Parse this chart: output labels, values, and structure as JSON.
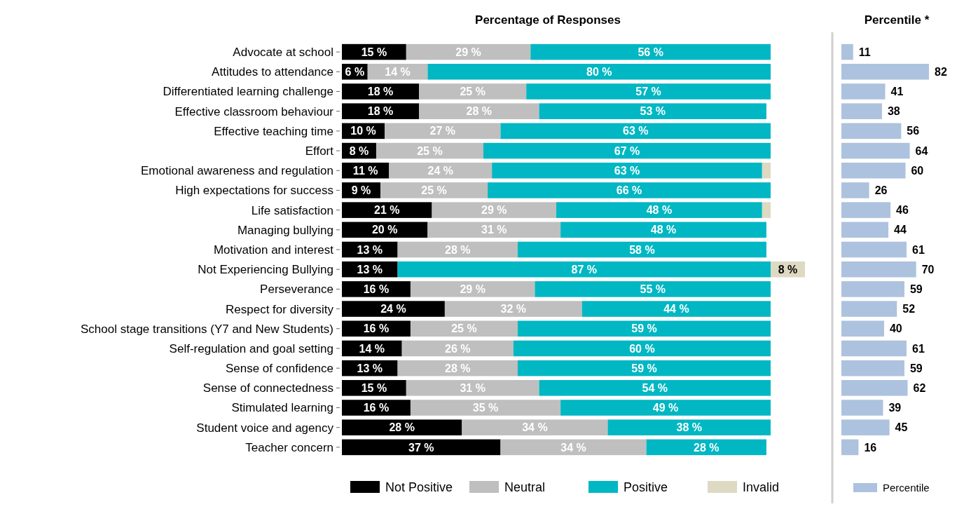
{
  "chart_data": [
    {
      "type": "bar",
      "orientation": "horizontal",
      "stacked": true,
      "title": "Percentage of Responses",
      "legend": "bottom",
      "categories": [
        "Advocate at school",
        "Attitudes to attendance",
        "Differentiated learning challenge",
        "Effective classroom behaviour",
        "Effective teaching time",
        "Effort",
        "Emotional awareness and regulation",
        "High expectations for success",
        "Life satisfaction",
        "Managing bullying",
        "Motivation and interest",
        "Not Experiencing Bullying",
        "Perseverance",
        "Respect for diversity",
        "School stage transitions (Y7 and New Students)",
        "Self-regulation and goal setting",
        "Sense of confidence",
        "Sense of connectedness",
        "Stimulated learning",
        "Student voice and agency",
        "Teacher concern"
      ],
      "series": [
        {
          "name": "Not Positive",
          "color": "#000000",
          "values": [
            15,
            6,
            18,
            18,
            10,
            8,
            11,
            9,
            21,
            20,
            13,
            13,
            16,
            24,
            16,
            14,
            13,
            15,
            16,
            28,
            37
          ],
          "value_labels": [
            "15 %",
            "6 %",
            "18 %",
            "18 %",
            "10 %",
            "8 %",
            "11 %",
            "9 %",
            "21 %",
            "20 %",
            "13 %",
            "13 %",
            "16 %",
            "24 %",
            "16 %",
            "14 %",
            "13 %",
            "15 %",
            "16 %",
            "28 %",
            "37 %"
          ]
        },
        {
          "name": "Neutral",
          "color": "#bfbfbf",
          "values": [
            29,
            14,
            25,
            28,
            27,
            25,
            24,
            25,
            29,
            31,
            28,
            null,
            29,
            32,
            25,
            26,
            28,
            31,
            35,
            34,
            34
          ],
          "value_labels": [
            "29 %",
            "14 %",
            "25 %",
            "28 %",
            "27 %",
            "25 %",
            "24 %",
            "25 %",
            "29 %",
            "31 %",
            "28 %",
            null,
            "29 %",
            "32 %",
            "25 %",
            "26 %",
            "28 %",
            "31 %",
            "35 %",
            "34 %",
            "34 %"
          ]
        },
        {
          "name": "Positive",
          "color": "#00b7c3",
          "values": [
            56,
            80,
            57,
            53,
            63,
            67,
            63,
            66,
            48,
            48,
            58,
            87,
            55,
            44,
            59,
            60,
            59,
            54,
            49,
            38,
            28
          ],
          "value_labels": [
            "56 %",
            "80 %",
            "57 %",
            "53 %",
            "63 %",
            "67 %",
            "63 %",
            "66 %",
            "48 %",
            "48 %",
            "58 %",
            "87 %",
            "55 %",
            "44 %",
            "59 %",
            "60 %",
            "59 %",
            "54 %",
            "49 %",
            "38 %",
            "28 %"
          ]
        },
        {
          "name": "Invalid",
          "color": "#ddd9c3",
          "values": [
            null,
            null,
            null,
            null,
            null,
            null,
            2,
            null,
            2,
            null,
            null,
            8,
            null,
            null,
            null,
            null,
            null,
            null,
            null,
            null,
            null
          ],
          "value_labels": [
            null,
            null,
            null,
            null,
            null,
            null,
            null,
            null,
            null,
            null,
            null,
            "8 %",
            null,
            null,
            null,
            null,
            null,
            null,
            null,
            null,
            null
          ]
        }
      ]
    },
    {
      "type": "bar",
      "orientation": "horizontal",
      "title": "Percentile *",
      "legend": "bottom",
      "tick_labels": false,
      "data_labels": true,
      "categories": [
        null,
        null,
        null,
        null,
        null,
        null,
        null,
        null,
        null,
        null,
        null,
        null,
        null,
        null,
        null,
        null,
        null,
        null,
        null,
        null,
        null
      ],
      "series": [
        {
          "name": "Percentile",
          "color": "#adc2de",
          "values": [
            11,
            82,
            41,
            38,
            56,
            64,
            60,
            26,
            46,
            44,
            61,
            70,
            59,
            52,
            40,
            61,
            59,
            62,
            39,
            45,
            16
          ]
        }
      ]
    }
  ]
}
